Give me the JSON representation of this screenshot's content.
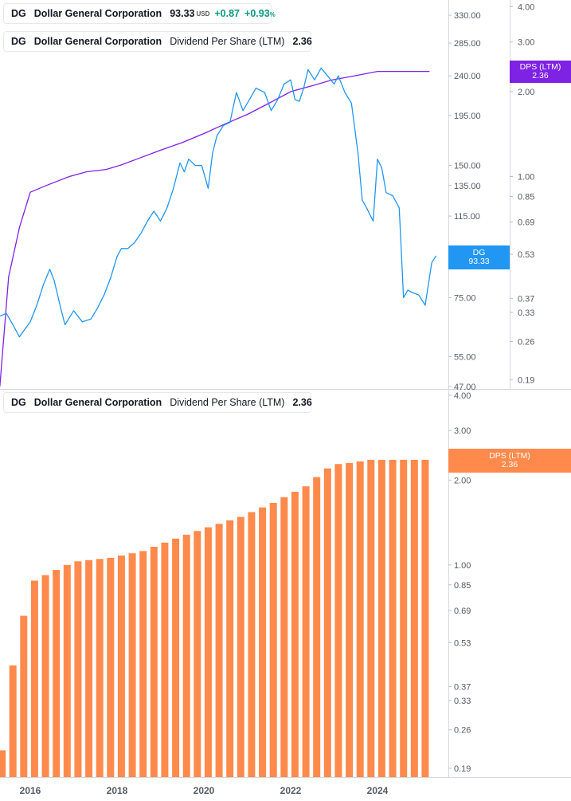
{
  "legend_top": {
    "ticker": "DG",
    "name": "Dollar General Corporation",
    "price": "93.33",
    "currency": "USD",
    "change": "+0.87",
    "change_pct": "+0.93",
    "pct_sign": "%",
    "color": "#2196F3"
  },
  "legend_dps_top": {
    "ticker": "DG",
    "name": "Dollar General Corporation",
    "indicator": "Dividend Per Share (LTM)",
    "value": "2.36",
    "color": "#7E22E4"
  },
  "legend_dps_bottom": {
    "ticker": "DG",
    "name": "Dollar General Corporation",
    "indicator": "Dividend Per Share (LTM)",
    "value": "2.36",
    "color": "#FF8A4C"
  },
  "tags": {
    "price_label": "DG",
    "price_value": "93.33",
    "price_color": "#2196F3",
    "dps_top_label": "DPS (LTM)",
    "dps_top_value": "2.36",
    "dps_top_color": "#7E22E4",
    "dps_bottom_label": "DPS (LTM)",
    "dps_bottom_value": "2.36",
    "dps_bottom_color": "#FF8A4C"
  },
  "chart_data": [
    {
      "type": "line",
      "title": "DG Dollar General Corporation",
      "scale": "log",
      "ylim": [
        47,
        350
      ],
      "yticks": [
        "330.00",
        "285.00",
        "240.00",
        "195.00",
        "150.00",
        "135.00",
        "115.00",
        "75.00",
        "55.00",
        "47.00"
      ],
      "series": [
        {
          "name": "DG price (USD)",
          "color": "#2196F3",
          "x": [
            2015.3,
            2015.45,
            2015.6,
            2015.75,
            2015.85,
            2016.0,
            2016.15,
            2016.3,
            2016.45,
            2016.55,
            2016.7,
            2016.8,
            2017.0,
            2017.2,
            2017.4,
            2017.55,
            2017.7,
            2017.85,
            2018.0,
            2018.1,
            2018.25,
            2018.4,
            2018.55,
            2018.7,
            2018.85,
            2019.0,
            2019.15,
            2019.3,
            2019.45,
            2019.55,
            2019.65,
            2019.8,
            2019.95,
            2020.1,
            2020.2,
            2020.3,
            2020.45,
            2020.6,
            2020.75,
            2020.9,
            2021.05,
            2021.2,
            2021.4,
            2021.55,
            2021.7,
            2021.85,
            2022.0,
            2022.1,
            2022.2,
            2022.3,
            2022.4,
            2022.55,
            2022.7,
            2022.85,
            2023.0,
            2023.1,
            2023.25,
            2023.4,
            2023.55,
            2023.65,
            2023.75,
            2023.9,
            2024.0,
            2024.1,
            2024.2,
            2024.35,
            2024.5,
            2024.6,
            2024.7,
            2024.8,
            2024.95,
            2025.1,
            2025.25,
            2025.35
          ],
          "values": [
            68,
            69,
            65,
            61,
            63,
            66,
            72,
            80,
            87,
            82,
            71,
            65,
            70,
            66,
            67,
            71,
            76,
            83,
            93,
            97,
            97,
            100,
            105,
            112,
            118,
            112,
            120,
            133,
            152,
            145,
            155,
            150,
            150,
            133,
            160,
            175,
            185,
            188,
            220,
            200,
            212,
            225,
            220,
            200,
            212,
            230,
            235,
            212,
            210,
            225,
            248,
            235,
            250,
            240,
            230,
            240,
            220,
            208,
            160,
            125,
            120,
            112,
            155,
            148,
            130,
            128,
            120,
            75,
            78,
            77,
            76,
            72,
            90,
            93.33
          ]
        }
      ]
    },
    {
      "type": "line",
      "title": "Dividend Per Share (LTM)",
      "scale": "log",
      "ylim": [
        0.18,
        4.2
      ],
      "yticks": [
        "4.00",
        "3.00",
        "2.00",
        "1.00",
        "0.85",
        "0.69",
        "0.53",
        "0.37",
        "0.33",
        "0.26",
        "0.19"
      ],
      "series": [
        {
          "name": "DPS (LTM)",
          "color": "#7E22E4",
          "x": [
            2015.3,
            2015.5,
            2015.75,
            2016.0,
            2016.3,
            2016.6,
            2016.9,
            2017.3,
            2017.75,
            2018.1,
            2018.5,
            2019.0,
            2019.5,
            2020.0,
            2020.5,
            2021.0,
            2021.5,
            2022.0,
            2022.5,
            2022.95,
            2023.5,
            2024.0,
            2024.5,
            2025.2
          ],
          "values": [
            0.18,
            0.44,
            0.66,
            0.88,
            0.92,
            0.96,
            1.0,
            1.04,
            1.06,
            1.1,
            1.16,
            1.24,
            1.32,
            1.42,
            1.54,
            1.66,
            1.82,
            2.0,
            2.1,
            2.2,
            2.28,
            2.36,
            2.36,
            2.36
          ]
        }
      ]
    },
    {
      "type": "bar",
      "title": "Dividend Per Share (LTM)",
      "scale": "log",
      "ylim": [
        0.185,
        4.05
      ],
      "yticks": [
        "4.00",
        "3.00",
        "2.00",
        "1.00",
        "0.85",
        "0.69",
        "0.53",
        "0.37",
        "0.33",
        "0.26",
        "0.19"
      ],
      "xticks": [
        "2016",
        "2018",
        "2020",
        "2022",
        "2024"
      ],
      "color": "#FF8A4C",
      "x": [
        2015.35,
        2015.6,
        2015.85,
        2016.1,
        2016.35,
        2016.6,
        2016.85,
        2017.1,
        2017.35,
        2017.6,
        2017.85,
        2018.1,
        2018.35,
        2018.6,
        2018.85,
        2019.1,
        2019.35,
        2019.6,
        2019.85,
        2020.1,
        2020.35,
        2020.6,
        2020.85,
        2021.1,
        2021.35,
        2021.6,
        2021.85,
        2022.1,
        2022.35,
        2022.6,
        2022.85,
        2023.1,
        2023.35,
        2023.6,
        2023.85,
        2024.1,
        2024.35,
        2024.6,
        2024.85,
        2025.1
      ],
      "values": [
        0.22,
        0.44,
        0.66,
        0.88,
        0.92,
        0.96,
        1.0,
        1.03,
        1.04,
        1.05,
        1.06,
        1.08,
        1.1,
        1.12,
        1.16,
        1.2,
        1.24,
        1.28,
        1.32,
        1.36,
        1.4,
        1.44,
        1.48,
        1.54,
        1.6,
        1.66,
        1.74,
        1.82,
        1.9,
        2.05,
        2.2,
        2.28,
        2.3,
        2.33,
        2.36,
        2.36,
        2.36,
        2.36,
        2.36,
        2.36
      ]
    }
  ]
}
